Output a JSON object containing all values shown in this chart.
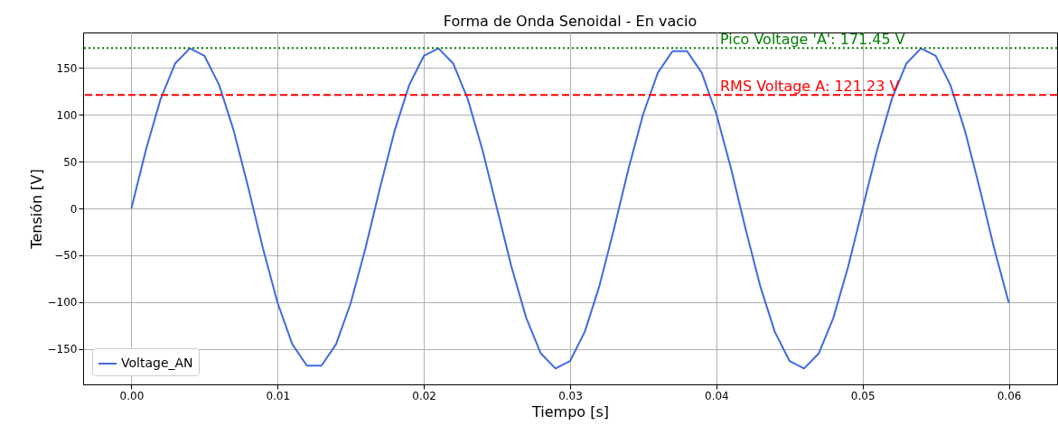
{
  "chart_data": {
    "type": "line",
    "title": "Forma de Onda Senoidal - En vacio",
    "xlabel": "Tiempo [s]",
    "ylabel": "Tensión [V]",
    "x": [
      0,
      0.001,
      0.002,
      0.003,
      0.004,
      0.005,
      0.006,
      0.007,
      0.008,
      0.009,
      0.01,
      0.011,
      0.012,
      0.013,
      0.014,
      0.015,
      0.016,
      0.017,
      0.018,
      0.019,
      0.02,
      0.021,
      0.022,
      0.023,
      0.024,
      0.025,
      0.026,
      0.027,
      0.028,
      0.029,
      0.03,
      0.031,
      0.032,
      0.033,
      0.034,
      0.035,
      0.036,
      0.037,
      0.038,
      0.039,
      0.04,
      0.041,
      0.042,
      0.043,
      0.044,
      0.045,
      0.046,
      0.047,
      0.048,
      0.049,
      0.05,
      0.051,
      0.052,
      0.053,
      0.054,
      0.055,
      0.056,
      0.057,
      0.058,
      0.059,
      0.06
    ],
    "series": [
      {
        "name": "Voltage_AN",
        "color": "#4169e1",
        "values": [
          0,
          63,
          117,
          155,
          171,
          163,
          132,
          83,
          22,
          -43,
          -101,
          -145,
          -168,
          -168,
          -145,
          -101,
          -43,
          22,
          83,
          132,
          163,
          171,
          155,
          117,
          63,
          0,
          -63,
          -117,
          -155,
          -171,
          -163,
          -132,
          -83,
          -22,
          43,
          101,
          145,
          168,
          168,
          145,
          101,
          43,
          -22,
          -83,
          -132,
          -163,
          -171,
          -155,
          -117,
          -63,
          0,
          63,
          117,
          155,
          171,
          163,
          132,
          83,
          22,
          -43,
          -101
        ]
      }
    ],
    "xlim": [
      -0.0033,
      0.0633
    ],
    "ylim": [
      -188,
      188
    ],
    "xticks": [
      {
        "value": 0,
        "label": "0.00"
      },
      0.01,
      0.02,
      0.03,
      0.04,
      0.05,
      0.06
    ],
    "yticks": [
      {
        "value": -150,
        "label": "−150"
      },
      {
        "value": -100,
        "label": "−100"
      },
      {
        "value": -50,
        "label": "−50"
      },
      0,
      50,
      100,
      150
    ],
    "ref_lines": [
      {
        "axis": "y",
        "value": 171.45,
        "label": "Pico Voltage 'A': 171.45 V",
        "color": "#008000",
        "line_style": "dotted"
      },
      {
        "axis": "y",
        "value": 121.23,
        "label": "RMS Voltage A: 121.23 V",
        "color": "#ff0000",
        "line_style": "dashed"
      }
    ],
    "grid": true,
    "legend": "bottom left",
    "marker": "none",
    "line_style": "solid"
  }
}
